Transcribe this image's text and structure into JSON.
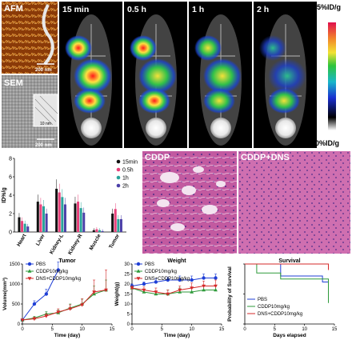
{
  "panels": {
    "afm": {
      "label": "AFM",
      "scale": "200 nm"
    },
    "sem": {
      "label": "SEM",
      "scale": "200 nm",
      "inset_scale": "10 nm"
    },
    "pet": {
      "times": [
        "15 min",
        "0.5 h",
        "1 h",
        "2 h"
      ],
      "colorbar_max": "5%ID/g",
      "colorbar_min": "0%ID/g"
    },
    "histology": {
      "left_label": "CDDP",
      "right_label": "CDDP+DNS"
    }
  },
  "chart_data": [
    {
      "id": "biodistribution",
      "type": "bar",
      "ylabel": "ID%/g",
      "ylim": [
        0,
        8
      ],
      "yticks": [
        0,
        2,
        4,
        6,
        8
      ],
      "categories": [
        "Heart",
        "Liver",
        "Kidney-L",
        "Kidney-R",
        "Muscle",
        "Tumor"
      ],
      "series": [
        {
          "name": "15min",
          "color": "#111111",
          "values": [
            1.6,
            3.3,
            4.7,
            3.1,
            0.2,
            2.0
          ]
        },
        {
          "name": "0.5h",
          "color": "#e8407a",
          "values": [
            1.2,
            3.0,
            4.3,
            3.3,
            0.3,
            2.5
          ]
        },
        {
          "name": "1h",
          "color": "#2aa39a",
          "values": [
            0.9,
            2.8,
            3.8,
            2.6,
            0.2,
            1.4
          ]
        },
        {
          "name": "2h",
          "color": "#4b3fa8",
          "values": [
            0.6,
            2.0,
            3.0,
            2.1,
            0.1,
            1.4
          ]
        }
      ]
    },
    {
      "id": "tumor",
      "type": "line",
      "title": "Tumor",
      "xlabel": "Time (day)",
      "ylabel": "Volume(mm³)",
      "xlim": [
        0,
        15
      ],
      "ylim": [
        0,
        1500
      ],
      "xticks": [
        0,
        5,
        10,
        15
      ],
      "yticks": [
        0,
        500,
        1000,
        1500
      ],
      "series": [
        {
          "name": "PBS",
          "color": "#1f3fd6",
          "marker": "circle",
          "x": [
            0,
            2,
            4,
            6
          ],
          "y": [
            100,
            500,
            750,
            1350
          ],
          "err": [
            20,
            80,
            120,
            200
          ]
        },
        {
          "name": "CDDP10mg/kg",
          "color": "#2e9a3a",
          "marker": "triangle",
          "x": [
            0,
            2,
            4,
            6,
            8,
            10,
            12,
            14
          ],
          "y": [
            100,
            150,
            250,
            280,
            400,
            500,
            750,
            850
          ],
          "err": [
            20,
            40,
            60,
            70,
            100,
            120,
            200,
            250
          ]
        },
        {
          "name": "DNS+CDDP10mg/kg",
          "color": "#d42a2a",
          "marker": "triangle-down",
          "x": [
            0,
            2,
            4,
            6,
            8,
            10,
            12,
            14
          ],
          "y": [
            100,
            130,
            200,
            300,
            380,
            480,
            800,
            850
          ],
          "err": [
            20,
            40,
            60,
            80,
            100,
            150,
            300,
            500
          ]
        }
      ]
    },
    {
      "id": "weight",
      "type": "line",
      "title": "Weight",
      "xlabel": "Time (day)",
      "ylabel": "Weight(g)",
      "xlim": [
        0,
        15
      ],
      "ylim": [
        0,
        30
      ],
      "xticks": [
        0,
        5,
        10,
        15
      ],
      "yticks": [
        0,
        5,
        10,
        15,
        20,
        25,
        30
      ],
      "series": [
        {
          "name": "PBS",
          "color": "#1f3fd6",
          "marker": "circle",
          "x": [
            0,
            2,
            4,
            6,
            8,
            10,
            12,
            14
          ],
          "y": [
            19,
            20,
            21,
            22,
            22,
            22,
            23,
            23
          ],
          "err": [
            1,
            1,
            1.5,
            1.5,
            2,
            2,
            2,
            2
          ]
        },
        {
          "name": "CDDP10mg/kg",
          "color": "#2e9a3a",
          "marker": "triangle",
          "x": [
            0,
            2,
            4,
            6,
            8,
            10,
            12,
            14
          ],
          "y": [
            18,
            16,
            15,
            15,
            16,
            16,
            17,
            17
          ],
          "err": [
            1,
            1.5,
            1.5,
            2,
            2,
            2,
            2,
            2
          ]
        },
        {
          "name": "DNS+CDDP10mg/kg",
          "color": "#d42a2a",
          "marker": "triangle-down",
          "x": [
            0,
            2,
            4,
            6,
            8,
            10,
            12,
            14
          ],
          "y": [
            18,
            17,
            16,
            15,
            17,
            18,
            19,
            19
          ],
          "err": [
            1,
            1.5,
            2,
            2,
            2,
            2.5,
            2.5,
            3
          ]
        }
      ]
    },
    {
      "id": "survival",
      "type": "line",
      "title": "Survival",
      "xlabel": "Days elapsed",
      "ylabel": "Probability of Survival",
      "xlim": [
        0,
        15
      ],
      "ylim": [
        0,
        100
      ],
      "xticks": [
        0,
        5,
        10,
        15
      ],
      "yticks": [
        0,
        50,
        100
      ],
      "series": [
        {
          "name": "PBS",
          "color": "#1f3fd6",
          "x": [
            0,
            6,
            6,
            13,
            13,
            14
          ],
          "y": [
            100,
            100,
            80,
            80,
            70,
            70
          ]
        },
        {
          "name": "CDDP10mg/kg",
          "color": "#2e9a3a",
          "x": [
            0,
            2,
            2,
            6,
            6,
            14,
            14
          ],
          "y": [
            100,
            100,
            85,
            85,
            75,
            75,
            35
          ]
        },
        {
          "name": "DNS+CDDP10mg/kg",
          "color": "#d42a2a",
          "x": [
            0,
            14,
            14
          ],
          "y": [
            100,
            100,
            90
          ]
        }
      ]
    }
  ]
}
